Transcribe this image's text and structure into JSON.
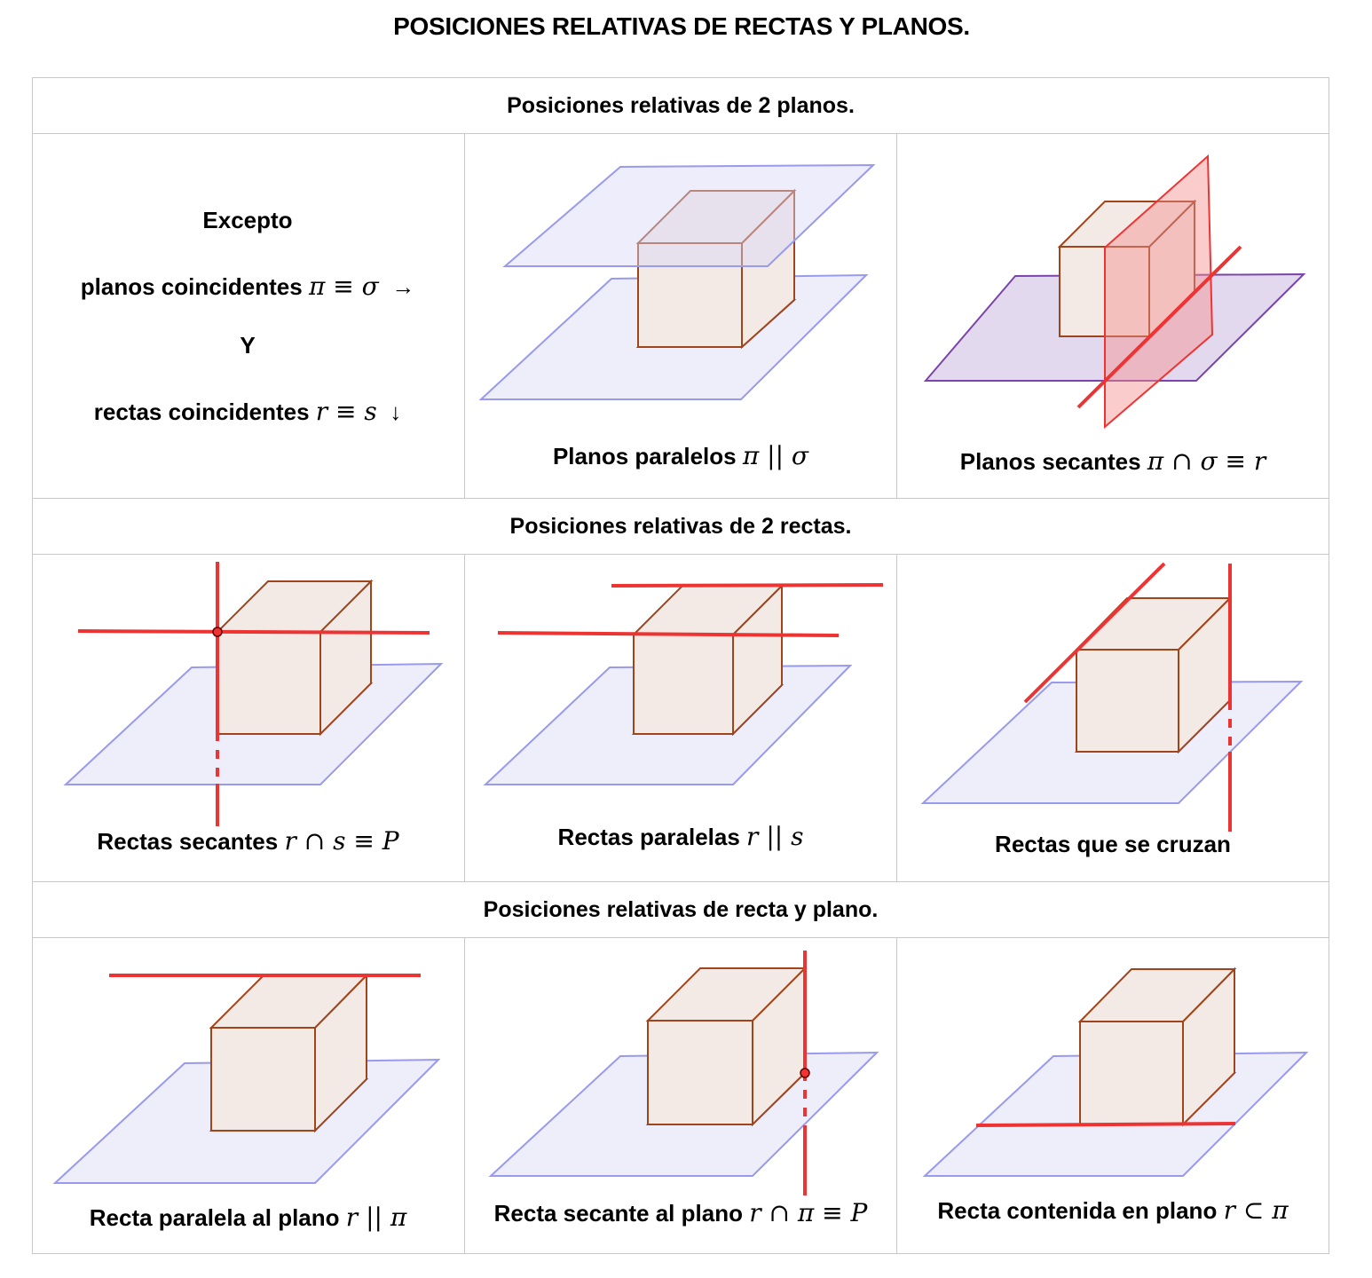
{
  "title": "POSICIONES RELATIVAS DE RECTAS Y PLANOS.",
  "sections": [
    {
      "header": "Posiciones relativas de 2 planos.",
      "cells": [
        {
          "excepto": "Excepto",
          "line1_text": "planos coincidentes",
          "line1_math": "π ≡ σ",
          "line1_arrow": "→",
          "y_label": "Y",
          "line2_text": "rectas coincidentes",
          "line2_math": "r ≡ s",
          "line2_arrow": "↓"
        },
        {
          "caption_text": "Planos paralelos",
          "caption_math": "π || σ"
        },
        {
          "caption_text": "Planos secantes",
          "caption_math": "π ∩ σ ≡ r"
        }
      ]
    },
    {
      "header": "Posiciones relativas de 2 rectas.",
      "cells": [
        {
          "caption_text": "Rectas secantes",
          "caption_math": "r ∩ s ≡ P"
        },
        {
          "caption_text": "Rectas paralelas",
          "caption_math": "r || s"
        },
        {
          "caption_text": "Rectas que se cruzan",
          "caption_math": ""
        }
      ]
    },
    {
      "header": "Posiciones relativas de recta y plano.",
      "cells": [
        {
          "caption_text": "Recta paralela al plano",
          "caption_math": "r || π"
        },
        {
          "caption_text": "Recta secante al plano",
          "caption_math": "r ∩ π ≡ P"
        },
        {
          "caption_text": "Recta contenida en plano",
          "caption_math": "r ⊂ π"
        }
      ]
    }
  ],
  "colors": {
    "plane_fill": "#eeeefb",
    "plane_stroke": "#9999ee",
    "cube_fill": "#f3e9e5",
    "cube_stroke": "#a0441c",
    "cube_hidden_stroke": "#7f6fcc",
    "line_red": "#ee3333",
    "secant_plane_fill": "#e3d9ef",
    "secant_plane_stroke": "#7a44aa",
    "red_plane_fill": "#f7c4c4",
    "grid_line": "#c8c8c8"
  }
}
